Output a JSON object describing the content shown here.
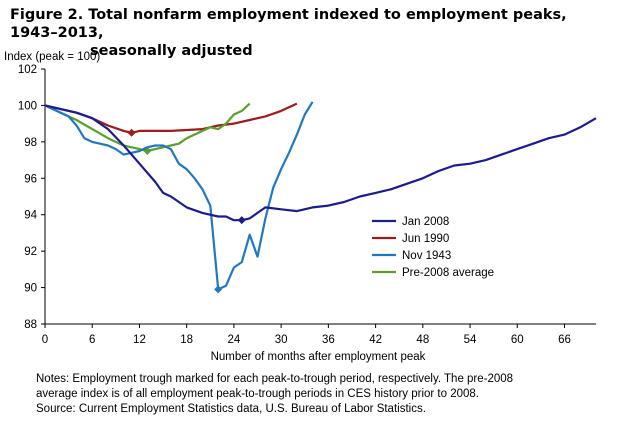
{
  "figure": {
    "title_line1": "Figure 2. Total nonfarm employment indexed to employment peaks, 1943–2013,",
    "title_line2": "seasonally adjusted",
    "notes_line1": "Notes: Employment trough marked for each peak-to-trough period, respectively. The pre-2008",
    "notes_line2": "average index is of all employment peak-to-trough periods in CES history prior to 2008.",
    "source": "Source: Current Employment Statistics data, U.S. Bureau of Labor Statistics."
  },
  "chart_data": {
    "type": "line",
    "ylabel": "Index (peak = 100)",
    "xlabel": "Number of months after employment peak",
    "xlim": [
      0,
      70
    ],
    "ylim": [
      88,
      102
    ],
    "xticks": [
      0,
      6,
      12,
      18,
      24,
      30,
      36,
      42,
      48,
      54,
      60,
      66
    ],
    "yticks": [
      88,
      90,
      92,
      94,
      96,
      98,
      100,
      102
    ],
    "grid": false,
    "legend_position": "right, inside plot",
    "series": [
      {
        "name": "Jan 2008",
        "color": "#1c1c8c",
        "marker": "diamond",
        "trough": [
          25,
          93.7
        ],
        "values": [
          [
            0,
            100
          ],
          [
            2,
            99.8
          ],
          [
            4,
            99.6
          ],
          [
            6,
            99.3
          ],
          [
            8,
            98.7
          ],
          [
            10,
            97.8
          ],
          [
            12,
            96.8
          ],
          [
            14,
            95.8
          ],
          [
            15,
            95.2
          ],
          [
            16,
            95.0
          ],
          [
            18,
            94.4
          ],
          [
            20,
            94.1
          ],
          [
            22,
            93.9
          ],
          [
            23,
            93.9
          ],
          [
            24,
            93.7
          ],
          [
            25,
            93.7
          ],
          [
            26,
            93.8
          ],
          [
            27,
            94.1
          ],
          [
            28,
            94.4
          ],
          [
            30,
            94.3
          ],
          [
            32,
            94.2
          ],
          [
            34,
            94.4
          ],
          [
            36,
            94.5
          ],
          [
            38,
            94.7
          ],
          [
            40,
            95.0
          ],
          [
            42,
            95.2
          ],
          [
            44,
            95.4
          ],
          [
            46,
            95.7
          ],
          [
            48,
            96.0
          ],
          [
            50,
            96.4
          ],
          [
            52,
            96.7
          ],
          [
            54,
            96.8
          ],
          [
            56,
            97.0
          ],
          [
            58,
            97.3
          ],
          [
            60,
            97.6
          ],
          [
            62,
            97.9
          ],
          [
            64,
            98.2
          ],
          [
            66,
            98.4
          ],
          [
            68,
            98.8
          ],
          [
            70,
            99.3
          ]
        ]
      },
      {
        "name": "Jun 1990",
        "color": "#9b1c1c",
        "marker": "diamond",
        "trough": [
          11,
          98.5
        ],
        "values": [
          [
            0,
            100
          ],
          [
            2,
            99.8
          ],
          [
            4,
            99.6
          ],
          [
            6,
            99.3
          ],
          [
            8,
            98.9
          ],
          [
            10,
            98.6
          ],
          [
            11,
            98.5
          ],
          [
            12,
            98.6
          ],
          [
            14,
            98.6
          ],
          [
            16,
            98.6
          ],
          [
            18,
            98.65
          ],
          [
            20,
            98.7
          ],
          [
            22,
            98.9
          ],
          [
            24,
            99.0
          ],
          [
            26,
            99.2
          ],
          [
            28,
            99.4
          ],
          [
            30,
            99.7
          ],
          [
            31,
            99.9
          ],
          [
            32,
            100.1
          ]
        ]
      },
      {
        "name": "Nov 1943",
        "color": "#2278c0",
        "marker": "diamond",
        "trough": [
          22,
          89.9
        ],
        "values": [
          [
            0,
            100
          ],
          [
            1,
            99.8
          ],
          [
            2,
            99.6
          ],
          [
            3,
            99.4
          ],
          [
            4,
            98.9
          ],
          [
            5,
            98.2
          ],
          [
            6,
            98.0
          ],
          [
            7,
            97.9
          ],
          [
            8,
            97.8
          ],
          [
            9,
            97.6
          ],
          [
            10,
            97.3
          ],
          [
            11,
            97.4
          ],
          [
            12,
            97.5
          ],
          [
            13,
            97.7
          ],
          [
            14,
            97.8
          ],
          [
            15,
            97.8
          ],
          [
            16,
            97.6
          ],
          [
            17,
            96.8
          ],
          [
            18,
            96.5
          ],
          [
            19,
            96.0
          ],
          [
            20,
            95.4
          ],
          [
            21,
            94.5
          ],
          [
            22,
            89.9
          ],
          [
            23,
            90.1
          ],
          [
            24,
            91.1
          ],
          [
            25,
            91.4
          ],
          [
            26,
            92.9
          ],
          [
            27,
            91.7
          ],
          [
            28,
            93.8
          ],
          [
            29,
            95.5
          ],
          [
            30,
            96.5
          ],
          [
            31,
            97.4
          ],
          [
            32,
            98.4
          ],
          [
            33,
            99.5
          ],
          [
            34,
            100.2
          ]
        ]
      },
      {
        "name": "Pre-2008 average",
        "color": "#5aa02c",
        "marker": "diamond",
        "trough": [
          13,
          97.5
        ],
        "values": [
          [
            0,
            100
          ],
          [
            2,
            99.6
          ],
          [
            4,
            99.2
          ],
          [
            6,
            98.7
          ],
          [
            8,
            98.2
          ],
          [
            10,
            97.8
          ],
          [
            12,
            97.6
          ],
          [
            13,
            97.5
          ],
          [
            14,
            97.6
          ],
          [
            16,
            97.8
          ],
          [
            17,
            97.9
          ],
          [
            18,
            98.2
          ],
          [
            20,
            98.6
          ],
          [
            21,
            98.8
          ],
          [
            22,
            98.7
          ],
          [
            23,
            99.0
          ],
          [
            24,
            99.5
          ],
          [
            25,
            99.7
          ],
          [
            26,
            100.1
          ]
        ]
      }
    ]
  }
}
